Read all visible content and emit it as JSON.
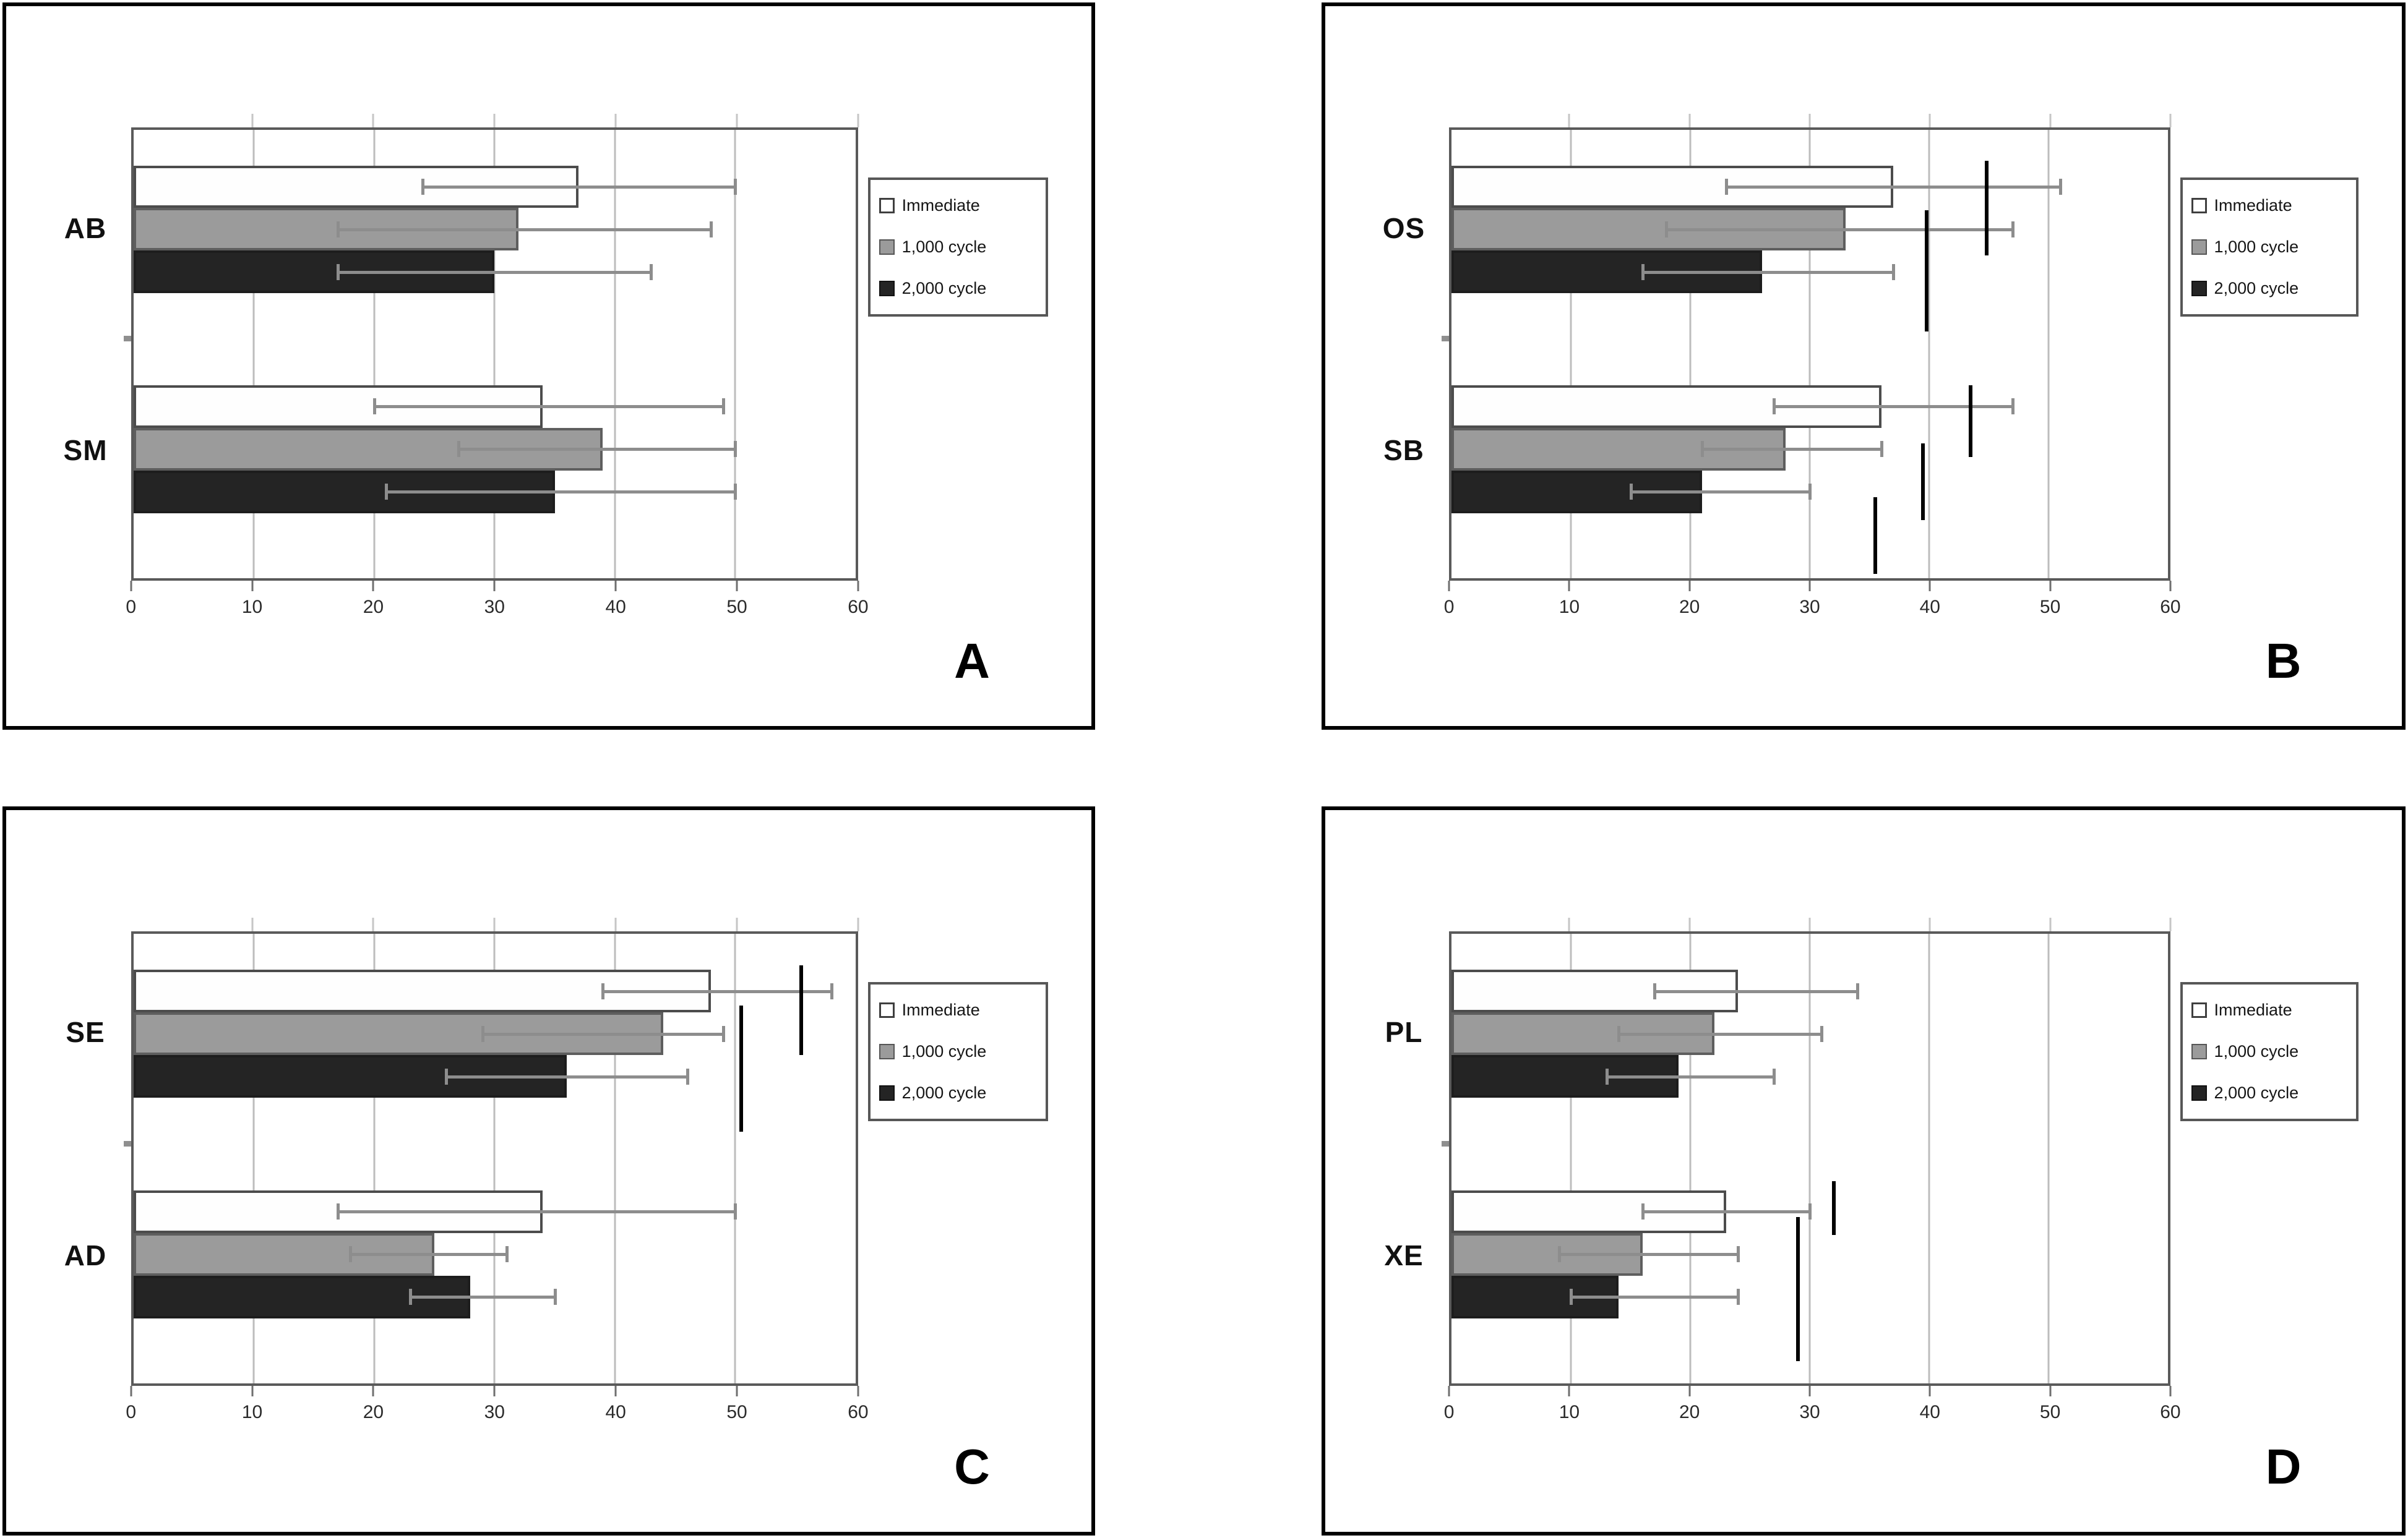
{
  "chart_data": {
    "type": "bar",
    "orientation": "horizontal",
    "grid": true,
    "legend_position": "right",
    "axis": {
      "ticks": [
        0,
        10,
        20,
        30,
        40,
        50,
        60
      ],
      "max": 60,
      "xlabel": "",
      "ylabel": ""
    },
    "series": [
      "Immediate",
      "1,000 cycle",
      "2,000 cycle"
    ],
    "series_swatches": [
      "white",
      "gray",
      "black"
    ],
    "colors": {
      "immediate_fill": "#ffffff",
      "cycle1000_fill": "#9b9b9b",
      "cycle2000_fill": "#242424",
      "bar_border": "#4c4c4c",
      "error_bar": "#8d8d8d",
      "gridline": "#bdbdbd",
      "plot_border": "#5a5a5a",
      "panel_border": "#000000",
      "significance_mark": "#000000"
    },
    "panels": [
      {
        "id": "A",
        "letter": "A",
        "groups": [
          {
            "label": "AB",
            "bars": [
              {
                "series": "Immediate",
                "value": 37,
                "err_low": 24,
                "err_high": 50
              },
              {
                "series": "1,000 cycle",
                "value": 32,
                "err_low": 17,
                "err_high": 48
              },
              {
                "series": "2,000 cycle",
                "value": 30,
                "err_low": 17,
                "err_high": 43
              }
            ]
          },
          {
            "label": "SM",
            "bars": [
              {
                "series": "Immediate",
                "value": 34,
                "err_low": 20,
                "err_high": 49
              },
              {
                "series": "1,000 cycle",
                "value": 39,
                "err_low": 27,
                "err_high": 50
              },
              {
                "series": "2,000 cycle",
                "value": 35,
                "err_low": 21,
                "err_high": 50
              }
            ]
          }
        ],
        "sig_marks": []
      },
      {
        "id": "B",
        "letter": "B",
        "groups": [
          {
            "label": "OS",
            "bars": [
              {
                "series": "Immediate",
                "value": 37,
                "err_low": 23,
                "err_high": 51
              },
              {
                "series": "1,000 cycle",
                "value": 33,
                "err_low": 18,
                "err_high": 47
              },
              {
                "series": "2,000 cycle",
                "value": 26,
                "err_low": 16,
                "err_high": 37
              }
            ]
          },
          {
            "label": "SB",
            "bars": [
              {
                "series": "Immediate",
                "value": 36,
                "err_low": 27,
                "err_high": 47
              },
              {
                "series": "1,000 cycle",
                "value": 28,
                "err_low": 21,
                "err_high": 36
              },
              {
                "series": "2,000 cycle",
                "value": 21,
                "err_low": 15,
                "err_high": 30
              }
            ]
          }
        ],
        "sig_marks": [
          {
            "x": 44.8,
            "y1": 7,
            "y2": 28
          },
          {
            "x": 39.8,
            "y1": 18,
            "y2": 45
          },
          {
            "x": 43.5,
            "y1": 57,
            "y2": 73
          },
          {
            "x": 39.5,
            "y1": 70,
            "y2": 87
          },
          {
            "x": 35.5,
            "y1": 82,
            "y2": 99
          }
        ]
      },
      {
        "id": "C",
        "letter": "C",
        "groups": [
          {
            "label": "SE",
            "bars": [
              {
                "series": "Immediate",
                "value": 48,
                "err_low": 39,
                "err_high": 58
              },
              {
                "series": "1,000 cycle",
                "value": 44,
                "err_low": 29,
                "err_high": 49
              },
              {
                "series": "2,000 cycle",
                "value": 36,
                "err_low": 26,
                "err_high": 46
              }
            ]
          },
          {
            "label": "AD",
            "bars": [
              {
                "series": "Immediate",
                "value": 34,
                "err_low": 17,
                "err_high": 50
              },
              {
                "series": "1,000 cycle",
                "value": 25,
                "err_low": 18,
                "err_high": 31
              },
              {
                "series": "2,000 cycle",
                "value": 28,
                "err_low": 23,
                "err_high": 35
              }
            ]
          }
        ],
        "sig_marks": [
          {
            "x": 55.5,
            "y1": 7,
            "y2": 27
          },
          {
            "x": 50.5,
            "y1": 16,
            "y2": 44
          }
        ]
      },
      {
        "id": "D",
        "letter": "D",
        "groups": [
          {
            "label": "PL",
            "bars": [
              {
                "series": "Immediate",
                "value": 24,
                "err_low": 17,
                "err_high": 34
              },
              {
                "series": "1,000 cycle",
                "value": 22,
                "err_low": 14,
                "err_high": 31
              },
              {
                "series": "2,000 cycle",
                "value": 19,
                "err_low": 13,
                "err_high": 27
              }
            ]
          },
          {
            "label": "XE",
            "bars": [
              {
                "series": "Immediate",
                "value": 23,
                "err_low": 16,
                "err_high": 30
              },
              {
                "series": "1,000 cycle",
                "value": 16,
                "err_low": 9,
                "err_high": 24
              },
              {
                "series": "2,000 cycle",
                "value": 14,
                "err_low": 10,
                "err_high": 24
              }
            ]
          }
        ],
        "sig_marks": [
          {
            "x": 32,
            "y1": 55,
            "y2": 67
          },
          {
            "x": 29,
            "y1": 63,
            "y2": 95
          }
        ]
      }
    ]
  }
}
